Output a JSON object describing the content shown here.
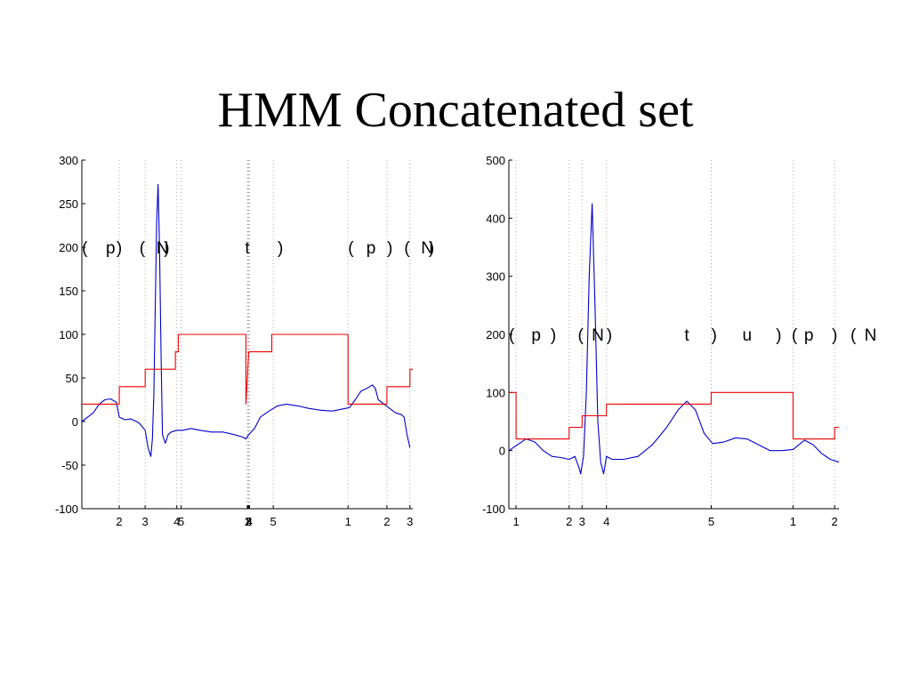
{
  "slide": {
    "title": "HMM Concatenated set"
  },
  "colors": {
    "signal": "#0000cc",
    "state": "#ee0000",
    "boundary": "#999999",
    "axis": "#000000"
  },
  "chart_data": [
    {
      "type": "line",
      "title": "",
      "xlabel": "",
      "ylabel": "",
      "ylim": [
        -100,
        300
      ],
      "xlim": [
        0,
        230
      ],
      "yticks": [
        -100,
        -50,
        0,
        50,
        100,
        150,
        200,
        250,
        300
      ],
      "grid": "dotted vertical lines at state boundaries",
      "boundaries": [
        {
          "x": 26,
          "label": "2"
        },
        {
          "x": 44,
          "label": "3"
        },
        {
          "x": 66,
          "label": "4"
        },
        {
          "x": 69,
          "label": "5"
        },
        {
          "x": 115,
          "label": "1"
        },
        {
          "x": 115.5,
          "label": "2"
        },
        {
          "x": 116,
          "label": "3"
        },
        {
          "x": 116.5,
          "label": "4"
        },
        {
          "x": 133,
          "label": "5"
        },
        {
          "x": 185,
          "label": "1"
        },
        {
          "x": 212,
          "label": "2"
        },
        {
          "x": 228,
          "label": "3"
        }
      ],
      "annotations": [
        {
          "x": 2,
          "text": "("
        },
        {
          "x": 20,
          "text": "p"
        },
        {
          "x": 26,
          "text": ")"
        },
        {
          "x": 42,
          "text": "("
        },
        {
          "x": 56,
          "text": "N"
        },
        {
          "x": 59,
          "text": ")"
        },
        {
          "x": 115,
          "text": "t"
        },
        {
          "x": 138,
          "text": ")"
        },
        {
          "x": 187,
          "text": "("
        },
        {
          "x": 201,
          "text": "p"
        },
        {
          "x": 214,
          "text": ")"
        },
        {
          "x": 226,
          "text": "("
        },
        {
          "x": 240,
          "text": "N"
        },
        {
          "x": 243,
          "text": ")"
        }
      ],
      "annotation_y": 200,
      "series": [
        {
          "role": "ecg-signal",
          "x": [
            0,
            4,
            8,
            12,
            16,
            20,
            24,
            26,
            30,
            34,
            38,
            40,
            44,
            46,
            48,
            49,
            50,
            51,
            52,
            53,
            54,
            55,
            56,
            58,
            60,
            62,
            66,
            70,
            76,
            82,
            90,
            98,
            106,
            112,
            114,
            116,
            120,
            124,
            130,
            136,
            142,
            150,
            158,
            166,
            174,
            180,
            186,
            190,
            194,
            198,
            202,
            204,
            206,
            210,
            214,
            218,
            222,
            224,
            226,
            228
          ],
          "y": [
            0,
            5,
            10,
            20,
            25,
            26,
            22,
            5,
            2,
            3,
            0,
            -2,
            -10,
            -30,
            -40,
            -20,
            30,
            130,
            230,
            272,
            200,
            80,
            -15,
            -25,
            -15,
            -12,
            -10,
            -10,
            -8,
            -10,
            -12,
            -12,
            -15,
            -18,
            -20,
            -15,
            -8,
            5,
            12,
            18,
            20,
            18,
            15,
            13,
            12,
            14,
            16,
            25,
            35,
            38,
            42,
            38,
            25,
            20,
            15,
            10,
            8,
            5,
            -15,
            -30
          ]
        },
        {
          "role": "state-sequence",
          "x": [
            0,
            26,
            26,
            44,
            44,
            65,
            65,
            67,
            67,
            69,
            69,
            114,
            114,
            116,
            116,
            132,
            132,
            185,
            185,
            212,
            212,
            228,
            228,
            230
          ],
          "y": [
            20,
            20,
            40,
            40,
            60,
            60,
            80,
            80,
            100,
            100,
            100,
            100,
            20,
            80,
            80,
            80,
            100,
            100,
            20,
            20,
            40,
            40,
            60,
            60
          ]
        }
      ]
    },
    {
      "type": "line",
      "title": "",
      "xlabel": "",
      "ylabel": "",
      "ylim": [
        -100,
        500
      ],
      "xlim": [
        0,
        230
      ],
      "yticks": [
        -100,
        0,
        100,
        200,
        300,
        400,
        500
      ],
      "grid": "dotted vertical lines at state boundaries",
      "boundaries": [
        {
          "x": 5,
          "label": "1"
        },
        {
          "x": 42,
          "label": "2"
        },
        {
          "x": 51,
          "label": "3"
        },
        {
          "x": 68,
          "label": "4"
        },
        {
          "x": 141,
          "label": "5"
        },
        {
          "x": 198,
          "label": "1"
        },
        {
          "x": 227,
          "label": "2"
        }
      ],
      "annotations": [
        {
          "x": 2,
          "text": "("
        },
        {
          "x": 19,
          "text": "p"
        },
        {
          "x": 31,
          "text": ")"
        },
        {
          "x": 50,
          "text": "("
        },
        {
          "x": 62,
          "text": "N"
        },
        {
          "x": 70,
          "text": ")"
        },
        {
          "x": 124,
          "text": "t"
        },
        {
          "x": 143,
          "text": ")"
        },
        {
          "x": 166,
          "text": "u"
        },
        {
          "x": 188,
          "text": ")"
        },
        {
          "x": 199,
          "text": "("
        },
        {
          "x": 209,
          "text": "p"
        },
        {
          "x": 227,
          "text": ")"
        },
        {
          "x": 240,
          "text": "("
        },
        {
          "x": 252,
          "text": "N"
        }
      ],
      "annotation_y": 200,
      "series": [
        {
          "role": "ecg-signal",
          "x": [
            0,
            6,
            12,
            18,
            24,
            30,
            36,
            42,
            46,
            49,
            50,
            52,
            54,
            56,
            58,
            60,
            62,
            64,
            66,
            68,
            72,
            80,
            90,
            100,
            110,
            118,
            124,
            130,
            136,
            142,
            150,
            158,
            166,
            174,
            182,
            190,
            198,
            206,
            212,
            218,
            224,
            230
          ],
          "y": [
            0,
            10,
            20,
            15,
            0,
            -10,
            -12,
            -15,
            -10,
            -30,
            -40,
            -10,
            100,
            300,
            425,
            250,
            50,
            -20,
            -40,
            -10,
            -15,
            -15,
            -10,
            10,
            40,
            70,
            85,
            70,
            30,
            12,
            15,
            22,
            20,
            10,
            0,
            0,
            2,
            18,
            10,
            -5,
            -15,
            -20
          ]
        },
        {
          "role": "state-sequence",
          "x": [
            0,
            5,
            5,
            42,
            42,
            51,
            51,
            68,
            68,
            141,
            141,
            198,
            198,
            227,
            227,
            230
          ],
          "y": [
            100,
            100,
            20,
            20,
            40,
            40,
            60,
            60,
            80,
            80,
            100,
            100,
            20,
            20,
            40,
            40
          ]
        }
      ]
    }
  ]
}
